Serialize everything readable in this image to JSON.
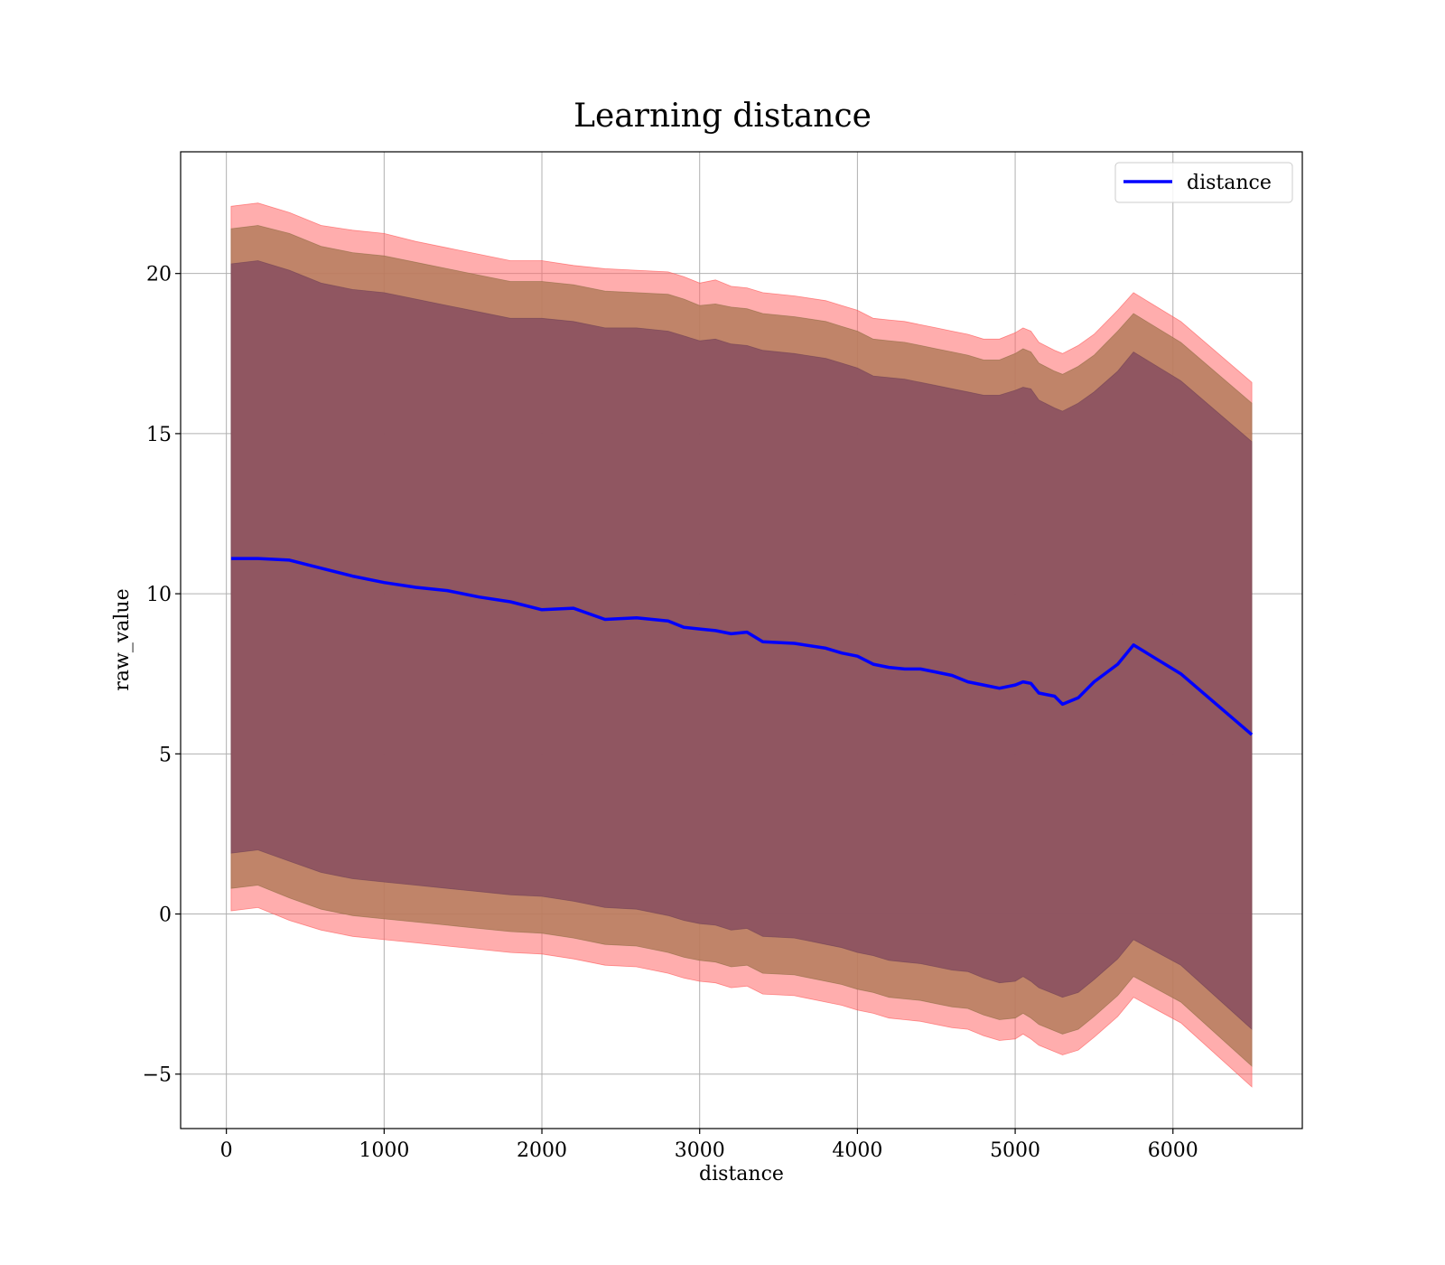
{
  "chart_data": {
    "type": "area",
    "title": "Learning distance",
    "xlabel": "distance",
    "ylabel": "raw_value",
    "xlim": [
      -290,
      6820
    ],
    "ylim": [
      -6.7,
      23.8
    ],
    "xticks": [
      0,
      1000,
      2000,
      3000,
      4000,
      5000,
      6000
    ],
    "yticks": [
      -5,
      0,
      5,
      10,
      15,
      20
    ],
    "grid": true,
    "legend": {
      "placement": "top-right",
      "entries": [
        "distance"
      ]
    },
    "colors": {
      "line": "#0000ff",
      "band_outer": "#ff6a6a",
      "band_middle": "#b57d5d",
      "band_inner": "#8b5161"
    },
    "x": [
      30,
      200,
      400,
      600,
      800,
      1000,
      1200,
      1400,
      1600,
      1800,
      2000,
      2200,
      2400,
      2600,
      2800,
      2900,
      3000,
      3100,
      3200,
      3300,
      3400,
      3600,
      3800,
      3900,
      4000,
      4100,
      4200,
      4300,
      4400,
      4500,
      4600,
      4700,
      4800,
      4900,
      5000,
      5050,
      5100,
      5150,
      5250,
      5300,
      5400,
      5500,
      5650,
      5750,
      6050,
      6500
    ],
    "series": [
      {
        "name": "distance",
        "values": [
          11.1,
          11.1,
          11.05,
          10.8,
          10.55,
          10.35,
          10.2,
          10.1,
          9.9,
          9.75,
          9.5,
          9.55,
          9.2,
          9.25,
          9.15,
          8.95,
          8.9,
          8.85,
          8.75,
          8.8,
          8.5,
          8.45,
          8.3,
          8.15,
          8.05,
          7.8,
          7.7,
          7.65,
          7.65,
          7.55,
          7.45,
          7.25,
          7.15,
          7.05,
          7.15,
          7.25,
          7.2,
          6.9,
          6.8,
          6.55,
          6.75,
          7.25,
          7.8,
          8.4,
          7.5,
          5.6
        ]
      }
    ],
    "bands": [
      {
        "level": "outer",
        "upper": [
          22.1,
          22.2,
          21.9,
          21.5,
          21.35,
          21.25,
          21.0,
          20.8,
          20.6,
          20.4,
          20.4,
          20.25,
          20.15,
          20.1,
          20.05,
          19.9,
          19.7,
          19.8,
          19.6,
          19.55,
          19.4,
          19.3,
          19.15,
          19.0,
          18.85,
          18.6,
          18.55,
          18.5,
          18.4,
          18.3,
          18.2,
          18.1,
          17.95,
          17.95,
          18.15,
          18.3,
          18.2,
          17.85,
          17.6,
          17.5,
          17.75,
          18.1,
          18.85,
          19.4,
          18.5,
          16.6
        ],
        "lower": [
          0.1,
          0.2,
          -0.2,
          -0.5,
          -0.7,
          -0.8,
          -0.9,
          -1.0,
          -1.1,
          -1.2,
          -1.25,
          -1.4,
          -1.6,
          -1.65,
          -1.85,
          -2.0,
          -2.1,
          -2.15,
          -2.3,
          -2.25,
          -2.5,
          -2.55,
          -2.75,
          -2.85,
          -3.0,
          -3.1,
          -3.25,
          -3.3,
          -3.35,
          -3.45,
          -3.55,
          -3.6,
          -3.8,
          -3.95,
          -3.9,
          -3.75,
          -3.9,
          -4.1,
          -4.3,
          -4.4,
          -4.25,
          -3.85,
          -3.2,
          -2.6,
          -3.4,
          -5.4
        ]
      },
      {
        "level": "middle",
        "upper": [
          21.4,
          21.5,
          21.25,
          20.85,
          20.65,
          20.55,
          20.35,
          20.15,
          19.95,
          19.75,
          19.75,
          19.65,
          19.45,
          19.4,
          19.35,
          19.2,
          19.0,
          19.05,
          18.95,
          18.9,
          18.75,
          18.65,
          18.5,
          18.35,
          18.2,
          17.95,
          17.9,
          17.85,
          17.75,
          17.65,
          17.55,
          17.45,
          17.3,
          17.3,
          17.5,
          17.65,
          17.55,
          17.2,
          16.95,
          16.85,
          17.1,
          17.45,
          18.2,
          18.75,
          17.85,
          15.95
        ],
        "lower": [
          0.8,
          0.9,
          0.5,
          0.15,
          -0.05,
          -0.15,
          -0.25,
          -0.35,
          -0.45,
          -0.55,
          -0.6,
          -0.75,
          -0.95,
          -1.0,
          -1.2,
          -1.35,
          -1.45,
          -1.5,
          -1.65,
          -1.6,
          -1.85,
          -1.9,
          -2.1,
          -2.2,
          -2.35,
          -2.45,
          -2.6,
          -2.65,
          -2.7,
          -2.8,
          -2.9,
          -2.95,
          -3.15,
          -3.3,
          -3.25,
          -3.1,
          -3.25,
          -3.45,
          -3.65,
          -3.75,
          -3.6,
          -3.2,
          -2.55,
          -1.95,
          -2.75,
          -4.75
        ]
      },
      {
        "level": "inner",
        "upper": [
          20.3,
          20.4,
          20.1,
          19.7,
          19.5,
          19.4,
          19.2,
          19.0,
          18.8,
          18.6,
          18.6,
          18.5,
          18.3,
          18.3,
          18.2,
          18.05,
          17.9,
          17.95,
          17.8,
          17.75,
          17.6,
          17.5,
          17.35,
          17.2,
          17.05,
          16.8,
          16.75,
          16.7,
          16.6,
          16.5,
          16.4,
          16.3,
          16.2,
          16.2,
          16.35,
          16.45,
          16.4,
          16.05,
          15.8,
          15.7,
          15.95,
          16.3,
          16.95,
          17.55,
          16.65,
          14.75
        ],
        "lower": [
          1.9,
          2.0,
          1.65,
          1.3,
          1.1,
          1.0,
          0.9,
          0.8,
          0.7,
          0.6,
          0.55,
          0.4,
          0.2,
          0.15,
          -0.05,
          -0.2,
          -0.3,
          -0.35,
          -0.5,
          -0.45,
          -0.7,
          -0.75,
          -0.95,
          -1.05,
          -1.2,
          -1.3,
          -1.45,
          -1.5,
          -1.55,
          -1.65,
          -1.75,
          -1.8,
          -2.0,
          -2.15,
          -2.1,
          -1.95,
          -2.1,
          -2.3,
          -2.5,
          -2.6,
          -2.45,
          -2.05,
          -1.4,
          -0.8,
          -1.6,
          -3.6
        ]
      }
    ]
  }
}
